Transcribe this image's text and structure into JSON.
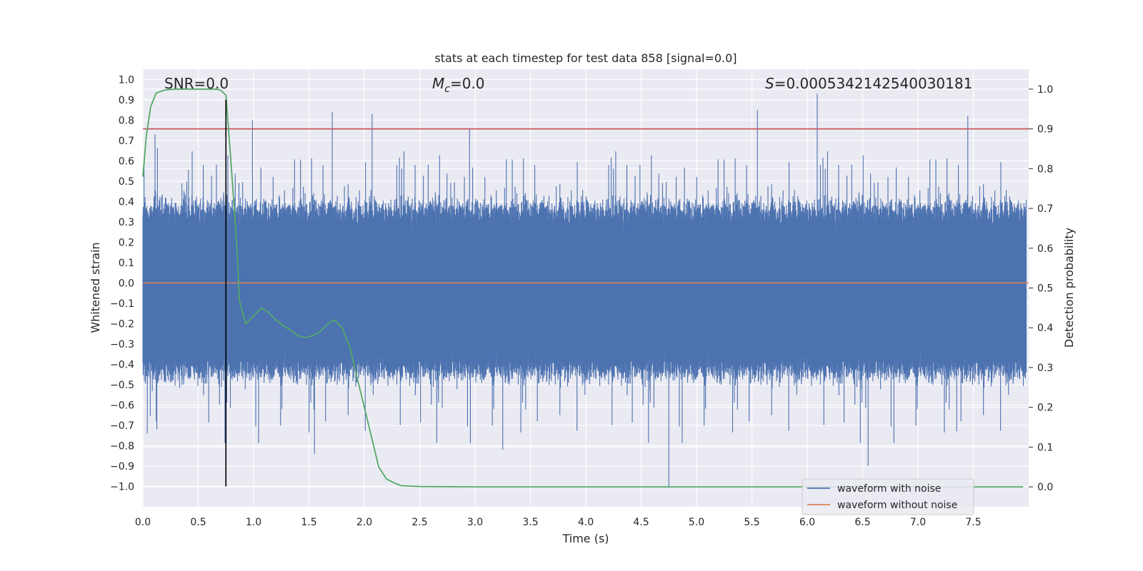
{
  "chart_data": {
    "type": "line",
    "title": "stats at each timestep for test data 858 [signal=0.0]",
    "xlabel": "Time (s)",
    "ylabel": "Whitened strain",
    "y2label": "Detection probability",
    "xlim": [
      0.0,
      8.0
    ],
    "ylim": [
      -1.1,
      1.05
    ],
    "y2lim": [
      -0.05,
      1.05
    ],
    "grid": true,
    "legend_position": "lower-right",
    "x_ticks": [
      0.0,
      0.5,
      1.0,
      1.5,
      2.0,
      2.5,
      3.0,
      3.5,
      4.0,
      4.5,
      5.0,
      5.5,
      6.0,
      6.5,
      7.0,
      7.5
    ],
    "x_tick_labels": [
      "0.0",
      "0.5",
      "1.0",
      "1.5",
      "2.0",
      "2.5",
      "3.0",
      "3.5",
      "4.0",
      "4.5",
      "5.0",
      "5.5",
      "6.0",
      "6.5",
      "7.0",
      "7.5"
    ],
    "y_ticks": [
      1.0,
      0.9,
      0.8,
      0.7,
      0.6,
      0.5,
      0.4,
      0.3,
      0.2,
      0.1,
      0.0,
      -0.1,
      -0.2,
      -0.3,
      -0.4,
      -0.5,
      -0.6,
      -0.7,
      -0.8,
      -0.9,
      -1.0
    ],
    "y_tick_labels": [
      "1.0",
      "0.9",
      "0.8",
      "0.7",
      "0.6",
      "0.5",
      "0.4",
      "0.3",
      "0.2",
      "0.1",
      "0.0",
      "−0.1",
      "−0.2",
      "−0.3",
      "−0.4",
      "−0.5",
      "−0.6",
      "−0.7",
      "−0.8",
      "−0.9",
      "−1.0"
    ],
    "y2_ticks": [
      1.0,
      0.9,
      0.8,
      0.7,
      0.6,
      0.5,
      0.4,
      0.3,
      0.2,
      0.1,
      0.0
    ],
    "y2_tick_labels": [
      "1.0",
      "0.9",
      "0.8",
      "0.7",
      "0.6",
      "0.5",
      "0.4",
      "0.3",
      "0.2",
      "0.1",
      "0.0"
    ],
    "annotations": {
      "snr": "SNR=0.0",
      "mc_symbol": "M",
      "mc_subscript": "c",
      "mc_value": "=0.0",
      "s_symbol": "S",
      "s_value": "=0.0005342142540030181"
    },
    "series": [
      {
        "name": "waveform with noise",
        "color": "#4c72b0",
        "description_type": "noise",
        "envelope_upper_typical": 0.35,
        "envelope_lower_typical": -0.42,
        "extremes": [
          {
            "x": 0.11,
            "y": 0.73
          },
          {
            "x": 0.04,
            "y": -0.74
          },
          {
            "x": 0.99,
            "y": 0.8
          },
          {
            "x": 1.71,
            "y": 0.84
          },
          {
            "x": 2.07,
            "y": 0.83
          },
          {
            "x": 2.95,
            "y": 0.76
          },
          {
            "x": 4.75,
            "y": -1.0
          },
          {
            "x": 5.55,
            "y": 0.85
          },
          {
            "x": 6.09,
            "y": 0.93
          },
          {
            "x": 6.55,
            "y": -0.9
          },
          {
            "x": 7.45,
            "y": 0.82
          },
          {
            "x": 7.35,
            "y": -0.73
          },
          {
            "x": 1.55,
            "y": -0.84
          },
          {
            "x": 3.25,
            "y": -0.82
          }
        ]
      },
      {
        "name": "waveform without noise",
        "color": "#dd8452",
        "x": [
          0.0,
          8.0
        ],
        "y": [
          0.0,
          0.0
        ]
      },
      {
        "name": "detection probability",
        "color": "#55a868",
        "axis": "y2",
        "x": [
          0.0,
          0.03,
          0.07,
          0.12,
          0.2,
          0.3,
          0.4,
          0.5,
          0.6,
          0.65,
          0.7,
          0.75,
          0.8,
          0.85,
          0.87,
          0.93,
          1.0,
          1.07,
          1.13,
          1.2,
          1.27,
          1.33,
          1.4,
          1.47,
          1.53,
          1.6,
          1.67,
          1.73,
          1.8,
          1.87,
          1.93,
          2.0,
          2.07,
          2.13,
          2.2,
          2.27,
          2.33,
          2.5,
          3.0,
          4.0,
          5.0,
          6.0,
          7.0,
          7.95
        ],
        "y": [
          0.78,
          0.88,
          0.955,
          0.99,
          0.998,
          1.0,
          1.0,
          1.0,
          1.0,
          1.0,
          0.998,
          0.985,
          0.8,
          0.6,
          0.47,
          0.41,
          0.43,
          0.45,
          0.44,
          0.42,
          0.405,
          0.395,
          0.38,
          0.375,
          0.38,
          0.39,
          0.41,
          0.42,
          0.4,
          0.35,
          0.28,
          0.2,
          0.12,
          0.05,
          0.02,
          0.01,
          0.003,
          0.001,
          0.0,
          0.0,
          0.0,
          0.0,
          0.0,
          0.0
        ]
      },
      {
        "name": "threshold",
        "color": "#c44e52",
        "axis": "y2",
        "x": [
          0.0,
          8.0
        ],
        "y": [
          0.9,
          0.9
        ]
      },
      {
        "name": "marker",
        "color": "#000000",
        "x": [
          0.75,
          0.75
        ],
        "y": [
          -1.0,
          0.9
        ]
      }
    ],
    "legend": [
      "waveform with noise",
      "waveform without noise"
    ]
  }
}
